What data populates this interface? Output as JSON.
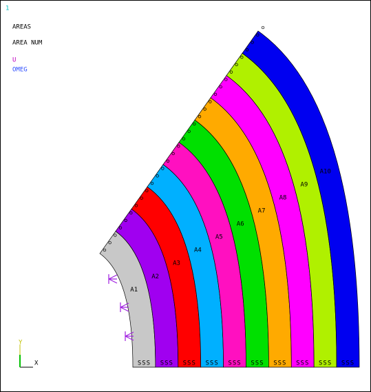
{
  "window": {
    "corner_label": "1",
    "legend": [
      "AREAS",
      "AREA NUM"
    ],
    "symbols": [
      "U",
      "OMEG"
    ]
  },
  "areas": [
    {
      "label": "A1",
      "color": "#c8c8c8",
      "constraint": "SSS"
    },
    {
      "label": "A2",
      "color": "#a000f0",
      "constraint": "SSS"
    },
    {
      "label": "A3",
      "color": "#ff0000",
      "constraint": "SSS"
    },
    {
      "label": "A4",
      "color": "#00b0ff",
      "constraint": "SSS"
    },
    {
      "label": "A5",
      "color": "#ff10c0",
      "constraint": "SSS"
    },
    {
      "label": "A6",
      "color": "#00e000",
      "constraint": "SSS"
    },
    {
      "label": "A7",
      "color": "#ffaa00",
      "constraint": "SSS"
    },
    {
      "label": "A8",
      "color": "#ff00ff",
      "constraint": "SSS"
    },
    {
      "label": "A9",
      "color": "#b0f000",
      "constraint": "SSS"
    },
    {
      "label": "A10",
      "color": "#0000f0",
      "constraint": "SSS"
    }
  ],
  "triad": {
    "x": "X",
    "y": "Y"
  }
}
